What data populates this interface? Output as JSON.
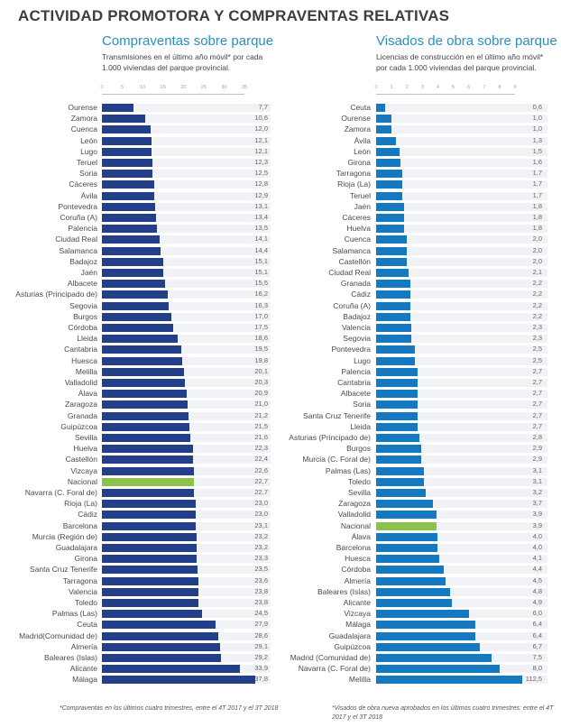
{
  "title": "ACTIVIDAD PROMOTORA Y COMPRAVENTAS RELATIVAS",
  "colors": {
    "left_bar": "#243f8a",
    "right_bar": "#1479c0",
    "highlight": "#8cc14c",
    "track": "#f0f2f5",
    "panel_title": "#2a8fc1"
  },
  "chart_data": [
    {
      "type": "bar",
      "orientation": "horizontal",
      "title": "Compraventas sobre parque",
      "subtitle": "Transmisiones en el último año móvil* por cada 1.000 viviendas del parque provincial.",
      "xlim": [
        0,
        35
      ],
      "ticks": [
        "0",
        "5",
        "10",
        "15",
        "20",
        "25",
        "30",
        "35"
      ],
      "highlight_category": "Nacional",
      "categories": [
        "Ourense",
        "Zamora",
        "Cuenca",
        "León",
        "Lugo",
        "Teruel",
        "Soria",
        "Cáceres",
        "Ávila",
        "Pontevedra",
        "Coruña (A)",
        "Palencia",
        "Ciudad Real",
        "Salamanca",
        "Badajoz",
        "Jaén",
        "Albacete",
        "Asturias (Principado de)",
        "Segovia",
        "Burgos",
        "Córdoba",
        "Lleida",
        "Cantabria",
        "Huesca",
        "Melilla",
        "Valladolid",
        "Álava",
        "Zaragoza",
        "Granada",
        "Guipúzcoa",
        "Sevilla",
        "Huelva",
        "Castellón",
        "Vizcaya",
        "Nacional",
        "Navarra (C. Foral de)",
        "Rioja (La)",
        "Cádiz",
        "Barcelona",
        "Murcia (Región de)",
        "Guadalajara",
        "Girona",
        "Santa Cruz Tenerife",
        "Tarragona",
        "Valencia",
        "Toledo",
        "Palmas (Las)",
        "Ceuta",
        "Madrid(Comunidad de)",
        "Almería",
        "Baleares (Islas)",
        "Alicante",
        "Málaga"
      ],
      "values": [
        7.7,
        10.6,
        12.0,
        12.1,
        12.1,
        12.3,
        12.5,
        12.8,
        12.9,
        13.1,
        13.4,
        13.5,
        14.1,
        14.4,
        15.1,
        15.1,
        15.5,
        16.2,
        16.3,
        17.0,
        17.5,
        18.6,
        19.5,
        19.8,
        20.1,
        20.3,
        20.9,
        21.0,
        21.2,
        21.5,
        21.6,
        22.3,
        22.4,
        22.6,
        22.7,
        22.7,
        23.0,
        23.0,
        23.1,
        23.2,
        23.2,
        23.3,
        23.5,
        23.6,
        23.8,
        23.8,
        24.5,
        27.9,
        28.6,
        29.1,
        29.2,
        33.9,
        37.8
      ],
      "labels": [
        "7,7",
        "10,6",
        "12,0",
        "12,1",
        "12,1",
        "12,3",
        "12,5",
        "12,8",
        "12,9",
        "13,1",
        "13,4",
        "13,5",
        "14,1",
        "14,4",
        "15,1",
        "15,1",
        "15,5",
        "16,2",
        "16,3",
        "17,0",
        "17,5",
        "18,6",
        "19,5",
        "19,8",
        "20,1",
        "20,3",
        "20,9",
        "21,0",
        "21,2",
        "21,5",
        "21,6",
        "22,3",
        "22,4",
        "22,6",
        "22,7",
        "22,7",
        "23,0",
        "23,0",
        "23,1",
        "23,2",
        "23,2",
        "23,3",
        "23,5",
        "23,6",
        "23,8",
        "23,8",
        "24,5",
        "27,9",
        "28,6",
        "29,1",
        "29,2",
        "33,9",
        "37,8"
      ],
      "footnote": "*Compraventas en los últimos cuatro trimestres, entre el 4T 2017 y el 3T 2018"
    },
    {
      "type": "bar",
      "orientation": "horizontal",
      "title": "Visados de obra sobre parque",
      "subtitle": "Licencias de construcción en el último año móvil* por cada 1.000 viviendas del parque provincial.",
      "xlim": [
        0,
        9
      ],
      "ticks": [
        "0",
        "1",
        "2",
        "3",
        "4",
        "5",
        "6",
        "7",
        "8",
        "9"
      ],
      "highlight_category": "Nacional",
      "categories": [
        "Ceuta",
        "Ourense",
        "Zamora",
        "Ávila",
        "León",
        "Girona",
        "Tarragona",
        "Rioja (La)",
        "Teruel",
        "Jaén",
        "Cáceres",
        "Huelva",
        "Cuenca",
        "Salamanca",
        "Castellón",
        "Ciudad Real",
        "Granada",
        "Cádiz",
        "Coruña (A)",
        "Badajoz",
        "Valencia",
        "Segovia",
        "Pontevedra",
        "Lugo",
        "Palencia",
        "Cantabria",
        "Albacete",
        "Soria",
        "Santa Cruz Tenerife",
        "Lleida",
        "Asturias (Principado de)",
        "Burgos",
        "Murcia (C. Foral de)",
        "Palmas (Las)",
        "Toledo",
        "Sevilla",
        "Zaragoza",
        "Valladolid",
        "Nacional",
        "Álava",
        "Barcelona",
        "Huesca",
        "Córdoba",
        "Almería",
        "Baleares (Islas)",
        "Alicante",
        "Vizcaya",
        "Málaga",
        "Guadalajara",
        "Guipúzcoa",
        "Madrid (Comunidad de)",
        "Navarra (C. Foral de)",
        "Melilla"
      ],
      "values": [
        0.6,
        1.0,
        1.0,
        1.3,
        1.5,
        1.6,
        1.7,
        1.7,
        1.7,
        1.8,
        1.8,
        1.8,
        2.0,
        2.0,
        2.0,
        2.1,
        2.2,
        2.2,
        2.2,
        2.2,
        2.3,
        2.3,
        2.5,
        2.5,
        2.7,
        2.7,
        2.7,
        2.7,
        2.7,
        2.7,
        2.8,
        2.9,
        2.9,
        3.1,
        3.1,
        3.2,
        3.7,
        3.9,
        3.9,
        4.0,
        4.0,
        4.1,
        4.4,
        4.5,
        4.8,
        4.9,
        6.0,
        6.4,
        6.4,
        6.7,
        7.5,
        8.0,
        112.5
      ],
      "labels": [
        "0,6",
        "1,0",
        "1,0",
        "1,3",
        "1,5",
        "1,6",
        "1,7",
        "1,7",
        "1,7",
        "1,8",
        "1,8",
        "1,8",
        "2,0",
        "2,0",
        "2,0",
        "2,1",
        "2,2",
        "2,2",
        "2,2",
        "2,2",
        "2,3",
        "2,3",
        "2,5",
        "2,5",
        "2,7",
        "2,7",
        "2,7",
        "2,7",
        "2,7",
        "2,7",
        "2,8",
        "2,9",
        "2,9",
        "3,1",
        "3,1",
        "3,2",
        "3,7",
        "3,9",
        "3,9",
        "4,0",
        "4,0",
        "4,1",
        "4,4",
        "4,5",
        "4,8",
        "4,9",
        "6,0",
        "6,4",
        "6,4",
        "6,7",
        "7,5",
        "8,0",
        "112,5"
      ],
      "footnote": "*Visados de obra nueva aprobados en los últimos cuatro trimestres: entre el 4T 2017 y el 3T 2018"
    }
  ]
}
